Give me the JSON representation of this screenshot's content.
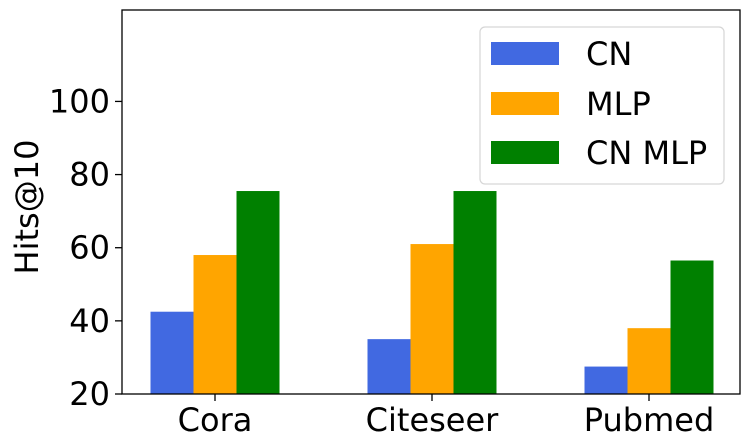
{
  "chart_data": {
    "type": "bar",
    "categories": [
      "Cora",
      "Citeseer",
      "Pubmed"
    ],
    "series": [
      {
        "name": "CN",
        "color": "#4169e1",
        "values": [
          42.5,
          35.0,
          27.5
        ]
      },
      {
        "name": "MLP",
        "color": "#ffa500",
        "values": [
          58.0,
          61.0,
          38.0
        ]
      },
      {
        "name": "CN MLP",
        "color": "#008000",
        "values": [
          75.5,
          75.5,
          56.5
        ]
      }
    ],
    "ylabel": "Hits@10",
    "ylim": [
      20,
      125
    ],
    "yticks": [
      20,
      40,
      60,
      80,
      100
    ],
    "grid": false,
    "legend_position": "top-right"
  }
}
